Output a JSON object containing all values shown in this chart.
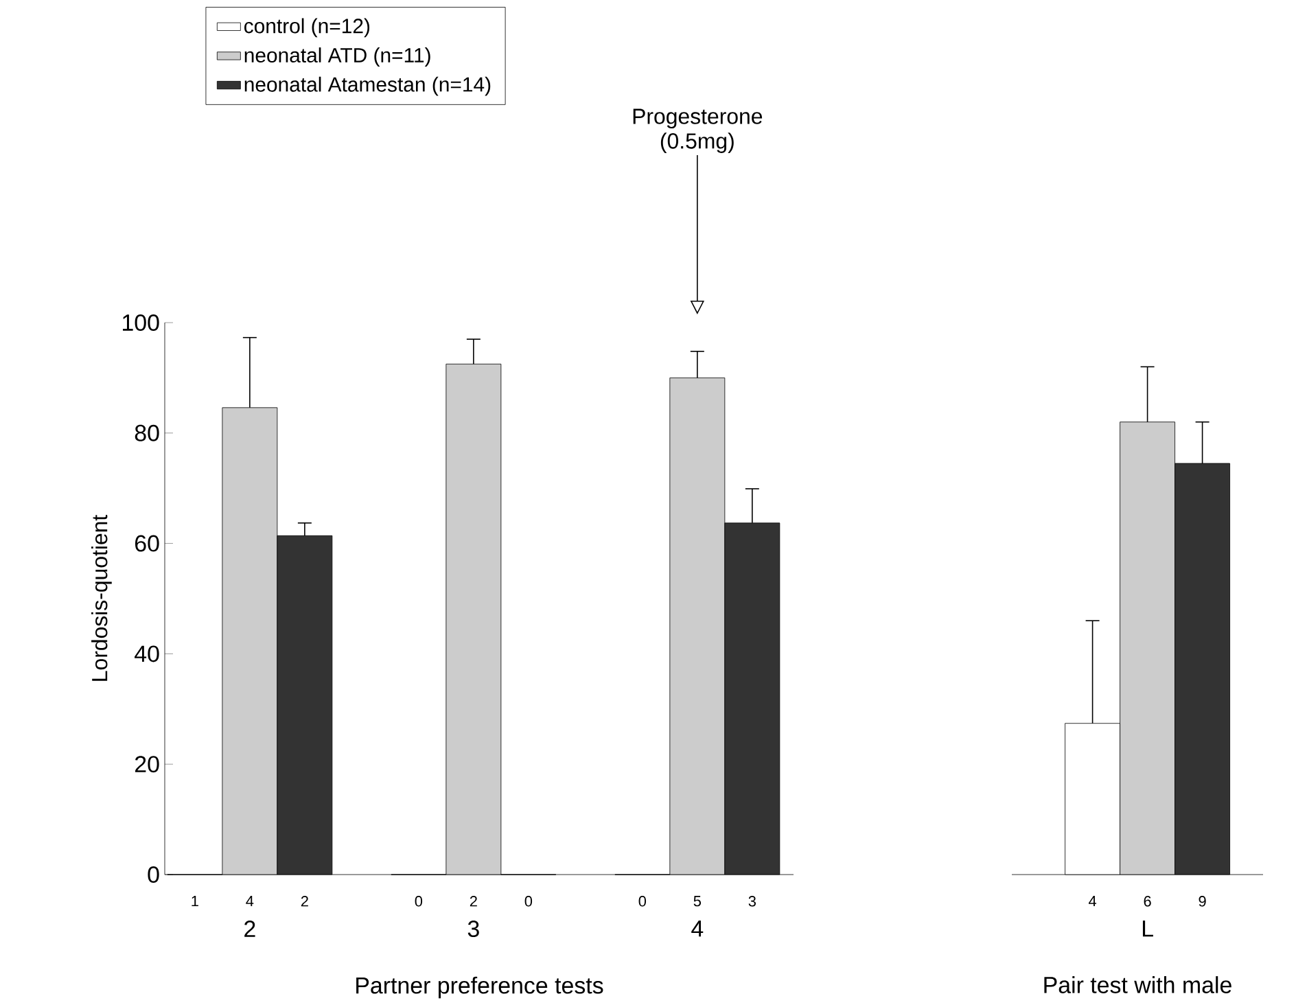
{
  "chart_data": [
    {
      "type": "bar",
      "categories": [
        "2",
        "3",
        "4"
      ],
      "xlabel": "Partner preference tests",
      "ylabel": "Lordosis-quotient",
      "ylim": [
        0,
        100
      ],
      "yticks": [
        0,
        20,
        40,
        60,
        80,
        100
      ],
      "legend": "top left",
      "series": [
        {
          "name": "control (n=12)",
          "color": "#ffffff",
          "values": [
            0,
            0,
            0
          ]
        },
        {
          "name": "neonatal ATD (n=11)",
          "color": "#cccccc",
          "values": [
            84.6,
            92.5,
            90
          ],
          "errors": [
            [
              84.6,
              97.3
            ],
            [
              92.5,
              97
            ],
            [
              90,
              94.8
            ]
          ]
        },
        {
          "name": "neonatal Atamestan (n=14)",
          "color": "#333333",
          "values": [
            61.4,
            0,
            63.7
          ],
          "errors": [
            [
              61.4,
              63.7
            ],
            null,
            [
              63.7,
              69.9
            ]
          ]
        }
      ],
      "annotations": [
        "Progesterone (0.5mg)",
        {
          "text": "1"
        },
        {
          "text": "4"
        },
        {
          "text": "2"
        },
        {
          "text": "0"
        },
        {
          "text": "2"
        },
        {
          "text": "0"
        },
        {
          "text": "0"
        },
        {
          "text": "5"
        },
        {
          "text": "3"
        }
      ]
    },
    {
      "type": "bar",
      "categories": [
        "L"
      ],
      "xlabel": "Pair test with male",
      "ylim": [
        0,
        100
      ],
      "tick_labels": "x",
      "series": [
        {
          "color": "#ffffff",
          "values": [
            27.4
          ],
          "errors": [
            [
              27.4,
              46
            ]
          ]
        },
        {
          "color": "#cccccc",
          "values": [
            82
          ],
          "errors": [
            [
              82,
              92
            ]
          ]
        },
        {
          "color": "#333333",
          "values": [
            74.5
          ],
          "errors": [
            [
              74.5,
              82
            ]
          ]
        }
      ],
      "annotations": [
        {
          "text": "4"
        },
        {
          "text": "6"
        },
        {
          "text": "9"
        }
      ]
    }
  ]
}
